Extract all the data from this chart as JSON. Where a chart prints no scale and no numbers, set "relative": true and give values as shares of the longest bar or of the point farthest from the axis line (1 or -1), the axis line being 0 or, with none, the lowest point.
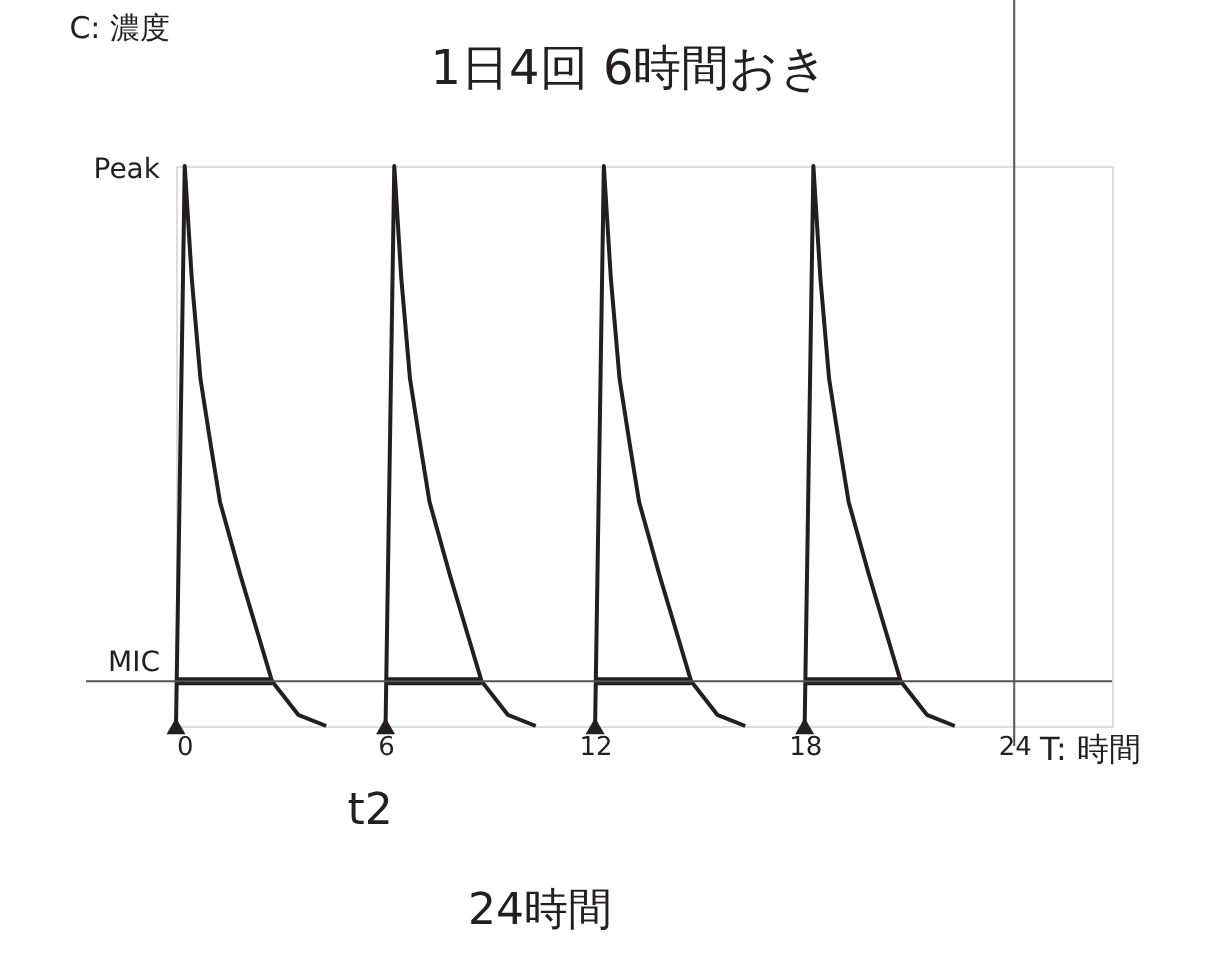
{
  "chart_data": {
    "type": "line",
    "title": "1日4回 6時間おき",
    "xlabel": "T: 時間",
    "ylabel": "C: 濃度",
    "relative": true,
    "xlim": [
      0,
      26.8
    ],
    "xticks": [
      0,
      6,
      12,
      18,
      24
    ],
    "grid": false,
    "line_style": "solid",
    "series": [
      {
        "color": "#231f20",
        "x": [
          0,
          0.25,
          0.45,
          0.7,
          1.0,
          1.26,
          1.84,
          2.75,
          3.5,
          4.3
        ],
        "values": [
          0,
          1,
          0.8,
          0.62,
          0.5,
          0.4,
          0.27,
          0.08,
          0.02,
          0
        ]
      },
      {
        "color": "#231f20",
        "x": [
          6,
          6.25,
          6.45,
          6.7,
          7.0,
          7.26,
          7.84,
          8.75,
          9.5,
          10.3
        ],
        "values": [
          0,
          1,
          0.8,
          0.62,
          0.5,
          0.4,
          0.27,
          0.08,
          0.02,
          0
        ]
      },
      {
        "color": "#231f20",
        "x": [
          12,
          12.25,
          12.45,
          12.7,
          13.0,
          13.26,
          13.84,
          14.75,
          15.5,
          16.3
        ],
        "values": [
          0,
          1,
          0.8,
          0.62,
          0.5,
          0.4,
          0.27,
          0.08,
          0.02,
          0
        ]
      },
      {
        "color": "#231f20",
        "x": [
          18,
          18.25,
          18.45,
          18.7,
          19.0,
          19.26,
          19.84,
          20.75,
          21.5,
          22.3
        ],
        "values": [
          0,
          1,
          0.8,
          0.62,
          0.5,
          0.4,
          0.27,
          0.08,
          0.02,
          0
        ]
      },
      {
        "color": "#231f20",
        "x": [
          0,
          2.75,
          2.8,
          6,
          8.75,
          8.8,
          12,
          14.75,
          14.8,
          18,
          20.75
        ],
        "values": [
          0.08,
          0.08,
          null,
          0.08,
          0.08,
          null,
          0.08,
          0.08,
          null,
          0.08,
          0.08
        ]
      },
      {
        "type": "scatter",
        "marker": "triangle",
        "color": "#231f20",
        "x": [
          0,
          6,
          12,
          18
        ],
        "values": [
          0,
          0,
          0,
          0
        ]
      }
    ],
    "ref_lines": [
      {
        "axis": "y",
        "value": 0.08,
        "label": "MIC",
        "color": "#555555"
      },
      {
        "axis": "x",
        "value": 24,
        "color": "#555555"
      }
    ],
    "annotations": [
      "Peak",
      "t2",
      "24時間"
    ]
  }
}
